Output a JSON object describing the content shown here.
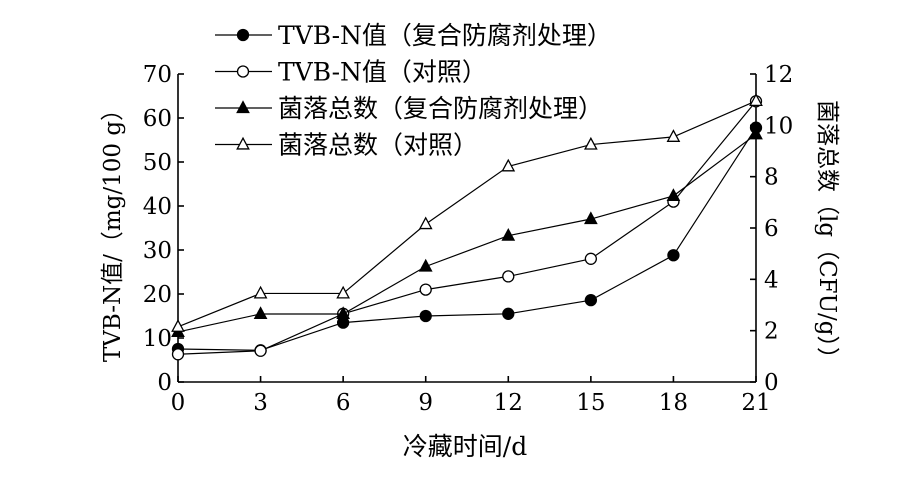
{
  "chart_data": {
    "type": "line",
    "xlabel": "冷藏时间/d",
    "ylabel_left": "TVB-N值/（mg/100 g）",
    "ylabel_right": "菌落总数（lg（CFU/g））",
    "x": [
      0,
      3,
      6,
      9,
      12,
      15,
      18,
      21
    ],
    "xlim": [
      0,
      21
    ],
    "ylim_left": [
      0,
      70
    ],
    "ylim_right": [
      0,
      12
    ],
    "x_ticks": [
      "0",
      "3",
      "6",
      "9",
      "12",
      "15",
      "18",
      "21"
    ],
    "y_ticks_left": [
      "0",
      "10",
      "20",
      "30",
      "40",
      "50",
      "60",
      "70"
    ],
    "y_ticks_right": [
      "0",
      "2",
      "4",
      "6",
      "8",
      "10",
      "12"
    ],
    "grid": false,
    "legend_position": "top-left",
    "series": [
      {
        "name": "TVB-N值（复合防腐剂处理）",
        "axis": "left",
        "marker": "filled-circle",
        "values": [
          7.5,
          7.2,
          13.5,
          15.0,
          15.5,
          18.6,
          28.8,
          57.8
        ]
      },
      {
        "name": "TVB-N值（对照）",
        "axis": "left",
        "marker": "open-circle",
        "values": [
          6.3,
          7.1,
          15.5,
          21.0,
          24.0,
          28.0,
          41.0,
          63.8
        ]
      },
      {
        "name": "菌落总数（复合防腐剂处理）",
        "axis": "right",
        "marker": "filled-triangle",
        "values": [
          1.95,
          2.65,
          2.65,
          4.5,
          5.7,
          6.35,
          7.25,
          9.65
        ]
      },
      {
        "name": "菌落总数（对照）",
        "axis": "right",
        "marker": "open-triangle",
        "values": [
          2.15,
          3.45,
          3.45,
          6.15,
          8.4,
          9.25,
          9.55,
          10.95
        ]
      }
    ]
  }
}
